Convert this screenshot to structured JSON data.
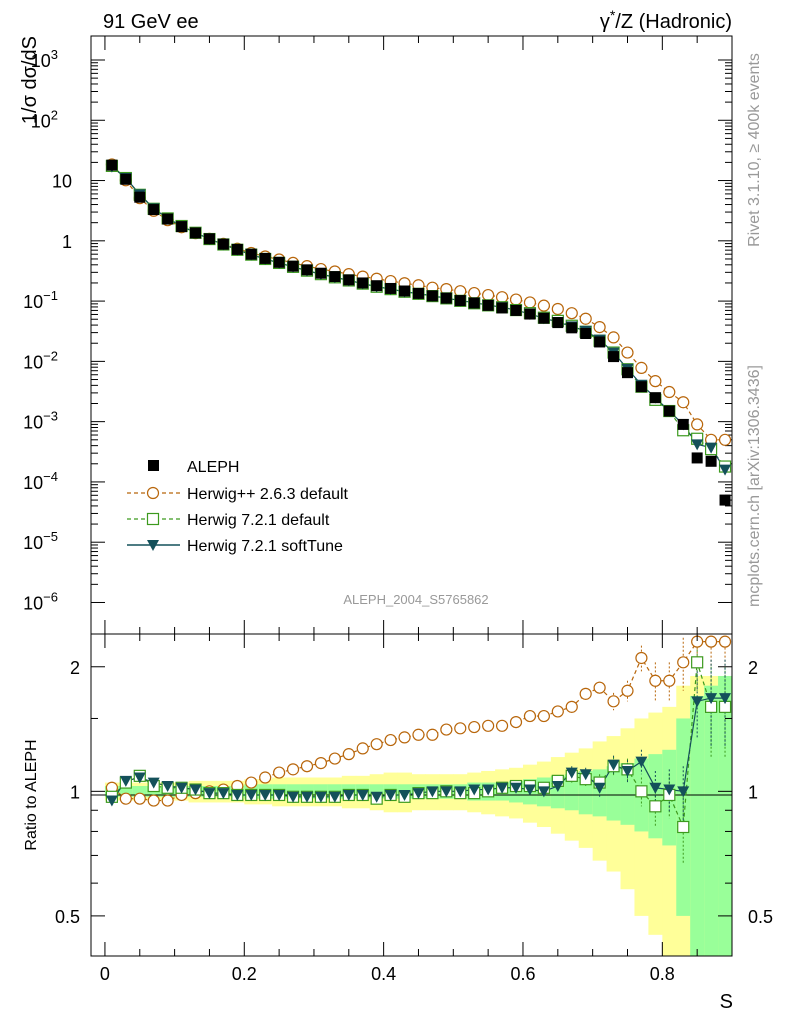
{
  "header": {
    "left_title": "91 GeV ee",
    "right_title_sup": "*",
    "right_title_a": "γ",
    "right_title_b": "/Z (Hadronic)"
  },
  "side_labels": {
    "rivet": "Rivet 3.1.10, ≥ 400k events",
    "mcplots": "mcplots.cern.ch [arXiv:1306.3436]"
  },
  "watermark": "ALEPH_2004_S5765862",
  "colors": {
    "aleph": "#000000",
    "herwigpp": "#b8660b",
    "h721default": "#3c9a1e",
    "softtune": "#14505a",
    "band_yellow": "#ffff99",
    "band_green": "#99ff99"
  },
  "chart_data": [
    {
      "type": "scatter",
      "yscale": "log",
      "ylabel": "1/σ  dσ/dS",
      "xlim": [
        -0.02,
        0.9
      ],
      "ylim": [
        3e-07,
        2500
      ],
      "yticks": [
        {
          "v": 1e-06,
          "base": "10",
          "exp": "−6"
        },
        {
          "v": 1e-05,
          "base": "10",
          "exp": "−5"
        },
        {
          "v": 0.0001,
          "base": "10",
          "exp": "−4"
        },
        {
          "v": 0.001,
          "base": "10",
          "exp": "−3"
        },
        {
          "v": 0.01,
          "base": "10",
          "exp": "−2"
        },
        {
          "v": 0.1,
          "base": "10",
          "exp": "−1"
        },
        {
          "v": 1,
          "base": "1",
          "exp": ""
        },
        {
          "v": 10,
          "base": "10",
          "exp": ""
        },
        {
          "v": 100,
          "base": "10",
          "exp": "2"
        },
        {
          "v": 1000,
          "base": "10",
          "exp": "3"
        }
      ],
      "x": [
        0.01,
        0.03,
        0.05,
        0.07,
        0.09,
        0.11,
        0.13,
        0.15,
        0.17,
        0.19,
        0.21,
        0.23,
        0.25,
        0.27,
        0.29,
        0.31,
        0.33,
        0.35,
        0.37,
        0.39,
        0.41,
        0.43,
        0.45,
        0.47,
        0.49,
        0.51,
        0.53,
        0.55,
        0.57,
        0.59,
        0.61,
        0.63,
        0.65,
        0.67,
        0.69,
        0.71,
        0.73,
        0.75,
        0.77,
        0.79,
        0.81,
        0.83,
        0.85,
        0.87,
        0.89
      ],
      "series": [
        {
          "name": "ALEPH",
          "marker": "square-filled",
          "values": [
            18,
            10.5,
            5.3,
            3.3,
            2.3,
            1.72,
            1.35,
            1.08,
            0.88,
            0.72,
            0.6,
            0.51,
            0.44,
            0.38,
            0.33,
            0.29,
            0.255,
            0.225,
            0.2,
            0.18,
            0.162,
            0.147,
            0.134,
            0.122,
            0.112,
            0.102,
            0.093,
            0.085,
            0.077,
            0.07,
            0.061,
            0.052,
            0.044,
            0.036,
            0.029,
            0.021,
            0.012,
            0.0065,
            0.0038,
            0.0025,
            0.0015,
            0.0009,
            0.00025,
            0.00022,
            5e-05
          ]
        },
        {
          "name": "Herwig++ 2.6.3 default",
          "marker": "circle-open",
          "values": [
            18.5,
            10.1,
            5.1,
            3.15,
            2.2,
            1.68,
            1.34,
            1.08,
            0.89,
            0.74,
            0.63,
            0.55,
            0.49,
            0.43,
            0.38,
            0.34,
            0.31,
            0.28,
            0.255,
            0.235,
            0.215,
            0.198,
            0.183,
            0.167,
            0.158,
            0.146,
            0.136,
            0.126,
            0.116,
            0.106,
            0.095,
            0.084,
            0.074,
            0.063,
            0.051,
            0.037,
            0.025,
            0.014,
            0.0078,
            0.0047,
            0.0031,
            0.0021,
            0.0009,
            0.0005,
            0.0005
          ]
        },
        {
          "name": "Herwig 7.2.1 default",
          "marker": "square-open",
          "values": [
            17.5,
            11,
            5.8,
            3.4,
            2.35,
            1.76,
            1.36,
            1.07,
            0.87,
            0.71,
            0.59,
            0.5,
            0.43,
            0.37,
            0.32,
            0.28,
            0.248,
            0.22,
            0.195,
            0.173,
            0.158,
            0.143,
            0.132,
            0.121,
            0.111,
            0.101,
            0.092,
            0.085,
            0.079,
            0.071,
            0.063,
            0.053,
            0.047,
            0.039,
            0.031,
            0.022,
            0.014,
            0.0074,
            0.0038,
            0.0023,
            0.0015,
            0.00072,
            0.00052,
            0.00035,
            0.00018
          ]
        },
        {
          "name": "Herwig 7.2.1 softTune",
          "marker": "triangle-down",
          "values": [
            17,
            11,
            5.9,
            3.45,
            2.35,
            1.75,
            1.36,
            1.07,
            0.87,
            0.71,
            0.59,
            0.5,
            0.43,
            0.37,
            0.32,
            0.28,
            0.248,
            0.22,
            0.195,
            0.174,
            0.158,
            0.143,
            0.133,
            0.122,
            0.112,
            0.102,
            0.094,
            0.086,
            0.079,
            0.071,
            0.061,
            0.052,
            0.045,
            0.038,
            0.032,
            0.023,
            0.014,
            0.0075,
            0.0041,
            0.0025,
            0.0015,
            0.0009,
            0.00042,
            0.00037,
            0.00016
          ]
        }
      ]
    },
    {
      "type": "scatter",
      "yscale": "log",
      "ylabel": "Ratio to ALEPH",
      "xlabel": "S",
      "xlim": [
        -0.02,
        0.9
      ],
      "ylim": [
        0.4,
        2.4
      ],
      "xticks": [
        "0",
        "0.2",
        "0.4",
        "0.6",
        "0.8"
      ],
      "xtick_values": [
        0,
        0.2,
        0.4,
        0.6,
        0.8
      ],
      "yticks": [
        "0.5",
        "1",
        "2"
      ],
      "ytick_values": [
        0.5,
        1,
        2
      ],
      "x": [
        0.01,
        0.03,
        0.05,
        0.07,
        0.09,
        0.11,
        0.13,
        0.15,
        0.17,
        0.19,
        0.21,
        0.23,
        0.25,
        0.27,
        0.29,
        0.31,
        0.33,
        0.35,
        0.37,
        0.39,
        0.41,
        0.43,
        0.45,
        0.47,
        0.49,
        0.51,
        0.53,
        0.55,
        0.57,
        0.59,
        0.61,
        0.63,
        0.65,
        0.67,
        0.69,
        0.71,
        0.73,
        0.75,
        0.77,
        0.79,
        0.81,
        0.83,
        0.85,
        0.87,
        0.89
      ],
      "band_green": [
        0.03,
        0.03,
        0.03,
        0.03,
        0.03,
        0.03,
        0.03,
        0.03,
        0.03,
        0.03,
        0.04,
        0.04,
        0.04,
        0.04,
        0.04,
        0.04,
        0.04,
        0.04,
        0.04,
        0.04,
        0.04,
        0.04,
        0.04,
        0.04,
        0.04,
        0.04,
        0.05,
        0.05,
        0.05,
        0.06,
        0.07,
        0.08,
        0.09,
        0.1,
        0.12,
        0.13,
        0.15,
        0.17,
        0.2,
        0.23,
        0.26,
        0.5,
        0.7,
        0.8,
        0.9
      ],
      "band_yellow": [
        0.05,
        0.05,
        0.05,
        0.05,
        0.05,
        0.05,
        0.06,
        0.06,
        0.06,
        0.06,
        0.07,
        0.07,
        0.08,
        0.08,
        0.08,
        0.08,
        0.08,
        0.09,
        0.09,
        0.1,
        0.11,
        0.11,
        0.1,
        0.1,
        0.1,
        0.1,
        0.11,
        0.12,
        0.13,
        0.14,
        0.16,
        0.18,
        0.21,
        0.24,
        0.27,
        0.32,
        0.36,
        0.42,
        0.5,
        0.55,
        0.6,
        0.8,
        0.9,
        0.9,
        0.9
      ],
      "series": [
        {
          "name": "Herwig++ 2.6.3 default",
          "values": [
            1.02,
            0.96,
            0.96,
            0.95,
            0.95,
            0.98,
            0.99,
            1.0,
            1.01,
            1.03,
            1.05,
            1.08,
            1.11,
            1.13,
            1.15,
            1.17,
            1.2,
            1.23,
            1.27,
            1.3,
            1.33,
            1.35,
            1.37,
            1.37,
            1.41,
            1.42,
            1.43,
            1.44,
            1.44,
            1.47,
            1.52,
            1.52,
            1.56,
            1.6,
            1.72,
            1.78,
            1.65,
            1.75,
            2.1,
            1.85,
            1.85,
            2.05,
            2.3,
            2.3,
            2.3
          ],
          "err": [
            0.01,
            0.01,
            0.01,
            0.01,
            0.01,
            0.01,
            0.01,
            0.01,
            0.01,
            0.01,
            0.01,
            0.01,
            0.01,
            0.01,
            0.01,
            0.01,
            0.01,
            0.01,
            0.01,
            0.01,
            0.02,
            0.02,
            0.02,
            0.02,
            0.02,
            0.02,
            0.02,
            0.03,
            0.03,
            0.03,
            0.03,
            0.03,
            0.04,
            0.04,
            0.05,
            0.06,
            0.08,
            0.1,
            0.15,
            0.2,
            0.2,
            0.3,
            0.3,
            0.3,
            0.3
          ]
        },
        {
          "name": "Herwig 7.2.1 default",
          "values": [
            0.97,
            1.05,
            1.09,
            1.03,
            1.02,
            1.02,
            1.01,
            0.99,
            0.99,
            0.98,
            0.98,
            0.98,
            0.98,
            0.97,
            0.97,
            0.97,
            0.97,
            0.98,
            0.98,
            0.96,
            0.98,
            0.97,
            0.99,
            0.99,
            1.0,
            0.99,
            0.99,
            1.0,
            1.02,
            1.03,
            1.03,
            1.02,
            1.06,
            1.09,
            1.07,
            1.05,
            1.15,
            1.13,
            1.0,
            0.92,
            0.98,
            0.82,
            2.05,
            1.6,
            1.6
          ],
          "err": [
            0.01,
            0.01,
            0.01,
            0.01,
            0.01,
            0.01,
            0.01,
            0.01,
            0.01,
            0.01,
            0.01,
            0.01,
            0.01,
            0.01,
            0.01,
            0.01,
            0.01,
            0.01,
            0.01,
            0.01,
            0.01,
            0.02,
            0.02,
            0.02,
            0.02,
            0.02,
            0.02,
            0.02,
            0.02,
            0.03,
            0.03,
            0.03,
            0.03,
            0.04,
            0.04,
            0.05,
            0.06,
            0.07,
            0.08,
            0.1,
            0.12,
            0.15,
            0.3,
            0.4,
            0.4
          ]
        },
        {
          "name": "Herwig 7.2.1 softTune",
          "values": [
            0.95,
            1.06,
            1.08,
            1.05,
            1.03,
            1.02,
            1.01,
            0.99,
            0.99,
            0.98,
            0.98,
            0.98,
            0.98,
            0.97,
            0.97,
            0.97,
            0.97,
            0.98,
            0.98,
            0.97,
            0.98,
            0.98,
            0.99,
            1.0,
            1.0,
            1.0,
            1.01,
            1.01,
            1.02,
            1.02,
            1.01,
            1.0,
            1.03,
            1.11,
            1.1,
            1.02,
            1.16,
            1.12,
            1.18,
            1.02,
            1.01,
            1.0,
            1.65,
            1.68,
            1.68
          ],
          "err": [
            0.01,
            0.01,
            0.01,
            0.01,
            0.01,
            0.01,
            0.01,
            0.01,
            0.01,
            0.01,
            0.01,
            0.01,
            0.01,
            0.01,
            0.01,
            0.01,
            0.01,
            0.01,
            0.01,
            0.01,
            0.01,
            0.02,
            0.02,
            0.02,
            0.02,
            0.02,
            0.02,
            0.02,
            0.02,
            0.03,
            0.03,
            0.03,
            0.03,
            0.04,
            0.04,
            0.05,
            0.06,
            0.07,
            0.08,
            0.1,
            0.12,
            0.15,
            0.3,
            0.4,
            0.4
          ]
        }
      ]
    }
  ]
}
